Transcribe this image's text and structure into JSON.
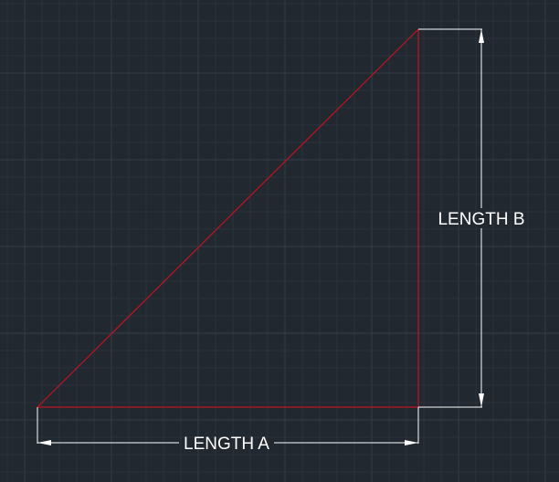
{
  "colors": {
    "background": "#212830",
    "grid_minor": "#2b323b",
    "grid_major": "#353d47",
    "geometry": "#c0141e",
    "dimension": "#ffffff"
  },
  "labels": {
    "length_a": "LENGTH A",
    "length_b": "LENGTH B"
  }
}
